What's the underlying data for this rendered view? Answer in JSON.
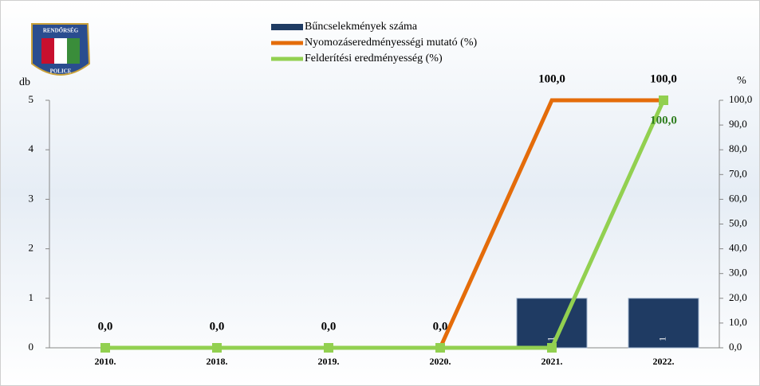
{
  "logo": {
    "top": "RENDŐRSÉG",
    "bottom": "POLICE"
  },
  "chart_data": {
    "type": "combo",
    "categories": [
      "2010.",
      "2018.",
      "2019.",
      "2020.",
      "2021.",
      "2022."
    ],
    "y_label": "db",
    "y2_label": "%",
    "ylim": [
      0,
      5
    ],
    "yticks": [
      0,
      1,
      2,
      3,
      4,
      5
    ],
    "y2lim": [
      0,
      100
    ],
    "y2ticks": [
      {
        "value": 0,
        "label": "0,0"
      },
      {
        "value": 10,
        "label": "10,0"
      },
      {
        "value": 20,
        "label": "20,0"
      },
      {
        "value": 30,
        "label": "30,0"
      },
      {
        "value": 40,
        "label": "40,0"
      },
      {
        "value": 50,
        "label": "50,0"
      },
      {
        "value": 60,
        "label": "60,0"
      },
      {
        "value": 70,
        "label": "70,0"
      },
      {
        "value": 80,
        "label": "80,0"
      },
      {
        "value": 90,
        "label": "90,0"
      },
      {
        "value": 100,
        "label": "100,0"
      }
    ],
    "series": [
      {
        "name": "Bűncselekmények száma",
        "type": "bar",
        "axis": "y",
        "color": "#1f3b63",
        "values": [
          0,
          0,
          0,
          0,
          1,
          1
        ]
      },
      {
        "name": "Nyomozáseredményességi mutató (%)",
        "type": "line",
        "axis": "y2",
        "color": "#e46c0a",
        "values": [
          0,
          0,
          0,
          0,
          100,
          100
        ],
        "value_labels": [
          "0,0",
          "0,0",
          "0,0",
          "0,0",
          "100,0",
          "100,0"
        ]
      },
      {
        "name": "Felderítési eredményesség (%)",
        "type": "line",
        "axis": "y2",
        "color": "#92d050",
        "marker": "square",
        "values": [
          0,
          0,
          0,
          0,
          0,
          100
        ],
        "value_labels": [
          null,
          null,
          null,
          null,
          null,
          "100,0"
        ]
      }
    ]
  }
}
